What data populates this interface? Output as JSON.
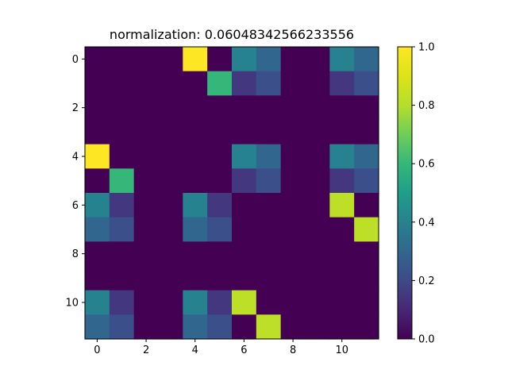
{
  "chart_data": {
    "type": "heatmap",
    "title": "normalization:  0.06048342566233556",
    "xlabel": "",
    "ylabel": "",
    "rows": 12,
    "cols": 12,
    "x_ticks": [
      0,
      2,
      4,
      6,
      8,
      10
    ],
    "y_ticks": [
      0,
      2,
      4,
      6,
      8,
      10
    ],
    "colormap": "viridis",
    "vmin": 0.0,
    "vmax": 1.0,
    "colorbar_ticks": [
      "0.0",
      "0.2",
      "0.4",
      "0.6",
      "0.8",
      "1.0"
    ],
    "values": [
      [
        0,
        0,
        0,
        0,
        1.0,
        0,
        0.4,
        0.3,
        0,
        0,
        0.4,
        0.3
      ],
      [
        0,
        0,
        0,
        0,
        0,
        0.6,
        0.15,
        0.22,
        0,
        0,
        0.15,
        0.22
      ],
      [
        0,
        0,
        0,
        0,
        0,
        0,
        0,
        0,
        0,
        0,
        0,
        0
      ],
      [
        0,
        0,
        0,
        0,
        0,
        0,
        0,
        0,
        0,
        0,
        0,
        0
      ],
      [
        1.0,
        0,
        0,
        0,
        0,
        0,
        0.4,
        0.3,
        0,
        0,
        0.4,
        0.3
      ],
      [
        0,
        0.6,
        0,
        0,
        0,
        0,
        0.15,
        0.22,
        0,
        0,
        0.15,
        0.22
      ],
      [
        0.4,
        0.15,
        0,
        0,
        0.4,
        0.15,
        0,
        0,
        0,
        0,
        0.82,
        0
      ],
      [
        0.3,
        0.22,
        0,
        0,
        0.3,
        0.22,
        0,
        0,
        0,
        0,
        0,
        0.82
      ],
      [
        0,
        0,
        0,
        0,
        0,
        0,
        0,
        0,
        0,
        0,
        0,
        0
      ],
      [
        0,
        0,
        0,
        0,
        0,
        0,
        0,
        0,
        0,
        0,
        0,
        0
      ],
      [
        0.4,
        0.15,
        0,
        0,
        0.4,
        0.15,
        0.82,
        0,
        0,
        0,
        0,
        0
      ],
      [
        0.3,
        0.22,
        0,
        0,
        0.3,
        0.22,
        0,
        0.82,
        0,
        0,
        0,
        0
      ]
    ]
  }
}
